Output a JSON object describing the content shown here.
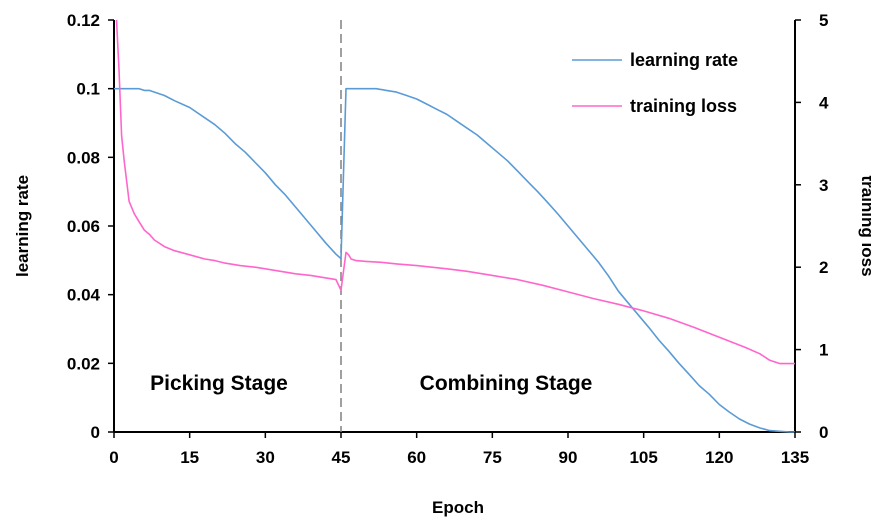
{
  "chart_data": {
    "type": "line",
    "title": "",
    "xlabel": "Epoch",
    "ylabel_left": "learning rate",
    "ylabel_right": "training loss",
    "xlim": [
      0,
      135
    ],
    "ylim_left": [
      0,
      0.12
    ],
    "ylim_right": [
      0,
      5
    ],
    "x_ticks": [
      0,
      15,
      30,
      45,
      60,
      75,
      90,
      105,
      120,
      135
    ],
    "x_tick_labels": [
      "0",
      "15",
      "30",
      "45",
      "60",
      "75",
      "90",
      "105",
      "120",
      "135"
    ],
    "y_left_ticks": [
      0,
      0.02,
      0.04,
      0.06,
      0.08,
      0.1,
      0.12
    ],
    "y_left_tick_labels": [
      "0",
      "0.02",
      "0.04",
      "0.06",
      "0.08",
      "0.1",
      "0.12"
    ],
    "y_right_ticks": [
      0,
      1,
      2,
      3,
      4,
      5
    ],
    "y_right_tick_labels": [
      "0",
      "1",
      "2",
      "3",
      "4",
      "5"
    ],
    "grid": false,
    "legend_position": "top-right",
    "stage_divider_x": 45,
    "annotations": [
      {
        "text": "Picking Stage",
        "x": 22,
        "y": 0.014
      },
      {
        "text": "Combining Stage",
        "x": 90,
        "y": 0.014
      }
    ],
    "series": [
      {
        "name": "learning rate",
        "axis": "left",
        "color": "#5b9bd5",
        "x": [
          0,
          1,
          2,
          3,
          4,
          5,
          6,
          7,
          8,
          10,
          12,
          15,
          18,
          20,
          22,
          24,
          26,
          28,
          30,
          32,
          34,
          36,
          38,
          40,
          42,
          44,
          45,
          46,
          47,
          48,
          50,
          52,
          54,
          56,
          58,
          60,
          62,
          64,
          66,
          68,
          70,
          72,
          74,
          76,
          78,
          80,
          82,
          84,
          86,
          88,
          90,
          92,
          94,
          96,
          98,
          100,
          102,
          104,
          106,
          108,
          110,
          112,
          114,
          116,
          118,
          120,
          122,
          124,
          126,
          128,
          130,
          132,
          134,
          135
        ],
        "y": [
          0.1,
          0.1,
          0.1,
          0.1,
          0.1,
          0.1,
          0.0995,
          0.0995,
          0.099,
          0.098,
          0.0965,
          0.0945,
          0.0915,
          0.0895,
          0.087,
          0.084,
          0.0815,
          0.0785,
          0.0755,
          0.072,
          0.069,
          0.0655,
          0.062,
          0.0585,
          0.055,
          0.0518,
          0.0505,
          0.1,
          0.1,
          0.1,
          0.1,
          0.1,
          0.0995,
          0.099,
          0.098,
          0.097,
          0.0955,
          0.094,
          0.0925,
          0.0905,
          0.0885,
          0.0865,
          0.084,
          0.0815,
          0.079,
          0.076,
          0.073,
          0.07,
          0.0668,
          0.0635,
          0.06,
          0.0565,
          0.053,
          0.0495,
          0.0455,
          0.041,
          0.0375,
          0.034,
          0.0305,
          0.0268,
          0.0235,
          0.02,
          0.0168,
          0.0135,
          0.011,
          0.008,
          0.0058,
          0.0038,
          0.0023,
          0.0012,
          0.0004,
          0.0002,
          0.0,
          0.0
        ]
      },
      {
        "name": "training loss",
        "axis": "right",
        "color": "#ff66cc",
        "x": [
          0.5,
          1,
          1.5,
          2,
          2.5,
          3,
          4,
          5,
          6,
          7,
          8,
          10,
          12,
          15,
          18,
          20,
          22,
          25,
          28,
          30,
          33,
          36,
          39,
          42,
          44,
          45,
          45.5,
          46,
          46.5,
          47,
          48,
          50,
          53,
          56,
          60,
          63,
          66,
          70,
          75,
          80,
          85,
          90,
          95,
          100,
          105,
          110,
          115,
          120,
          125,
          128,
          130,
          132,
          135
        ],
        "y": [
          5.0,
          4.4,
          3.6,
          3.3,
          3.05,
          2.8,
          2.65,
          2.55,
          2.45,
          2.4,
          2.33,
          2.25,
          2.2,
          2.15,
          2.1,
          2.08,
          2.05,
          2.02,
          2.0,
          1.98,
          1.95,
          1.92,
          1.9,
          1.87,
          1.85,
          1.72,
          1.95,
          2.18,
          2.15,
          2.1,
          2.08,
          2.07,
          2.06,
          2.04,
          2.02,
          2.0,
          1.98,
          1.95,
          1.9,
          1.85,
          1.78,
          1.7,
          1.62,
          1.55,
          1.47,
          1.38,
          1.27,
          1.15,
          1.03,
          0.95,
          0.87,
          0.83,
          0.83
        ]
      }
    ]
  }
}
